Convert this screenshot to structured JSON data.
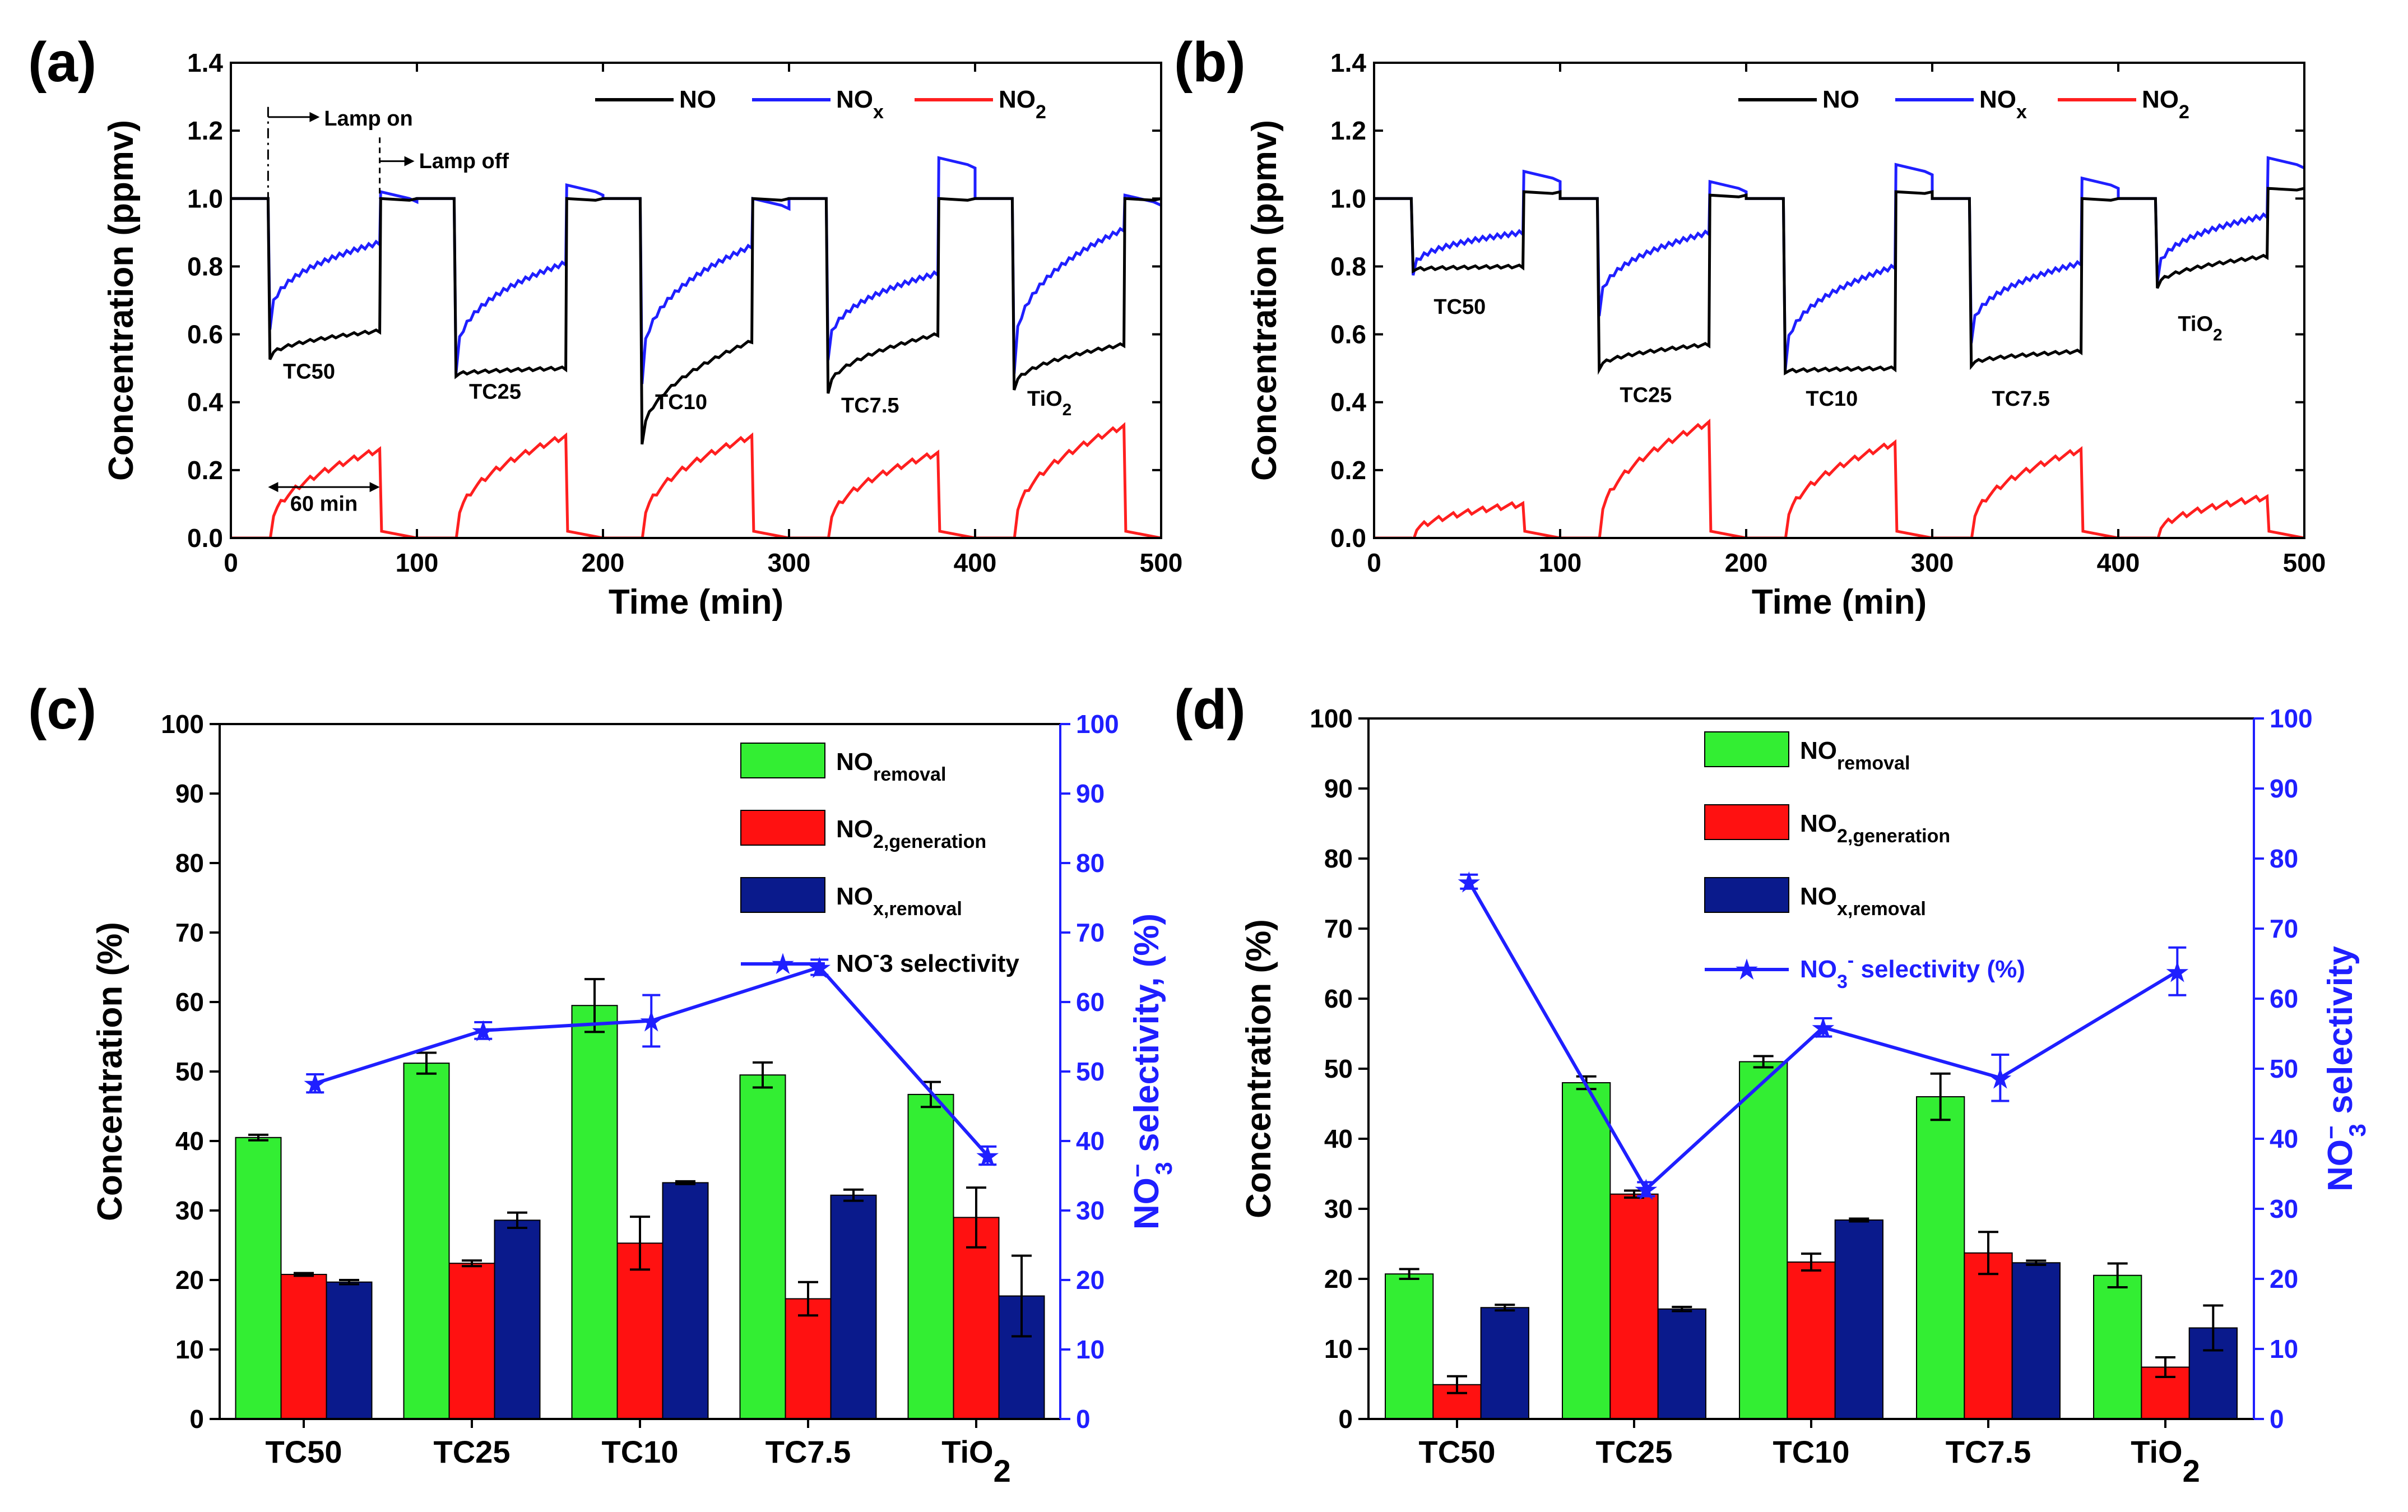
{
  "colors": {
    "no": "#000000",
    "nox": "#1f1fff",
    "no2": "#ff1f1f",
    "removal": "#33ee33",
    "generation": "#ff1111",
    "noxremoval": "#0a1a8c",
    "selectivity": "#1f1fff",
    "axis": "#000000"
  },
  "chart_data": [
    {
      "panel": "(a)",
      "type": "line",
      "xlabel": "Time (min)",
      "ylabel": "Concentration (ppmv)",
      "xlim": [
        0,
        500
      ],
      "ylim": [
        0,
        1.4
      ],
      "xticks": [
        "0",
        "100",
        "200",
        "300",
        "400",
        "500"
      ],
      "yticks": [
        "0.0",
        "0.2",
        "0.4",
        "0.6",
        "0.8",
        "1.0",
        "1.2",
        "1.4"
      ],
      "legend": {
        "no": "NO",
        "nox_base": "NO",
        "nox_sub": "x",
        "no2_base": "NO",
        "no2_sub": "2"
      },
      "annotations": {
        "lamp_on": "Lamp on",
        "lamp_off": "Lamp off",
        "duration": "60 min"
      },
      "samples": [
        {
          "name": "TC50",
          "sub": "",
          "start": 20,
          "no_drop": 0.53,
          "no_end": 0.61,
          "nox_drop": 0.62,
          "nox_end": 0.87,
          "no2_end": 0.26,
          "no_after": 1.0,
          "nox_after": 1.02
        },
        {
          "name": "TC25",
          "sub": "",
          "start": 120,
          "no_drop": 0.48,
          "no_end": 0.5,
          "nox_drop": 0.49,
          "nox_end": 0.81,
          "no2_end": 0.3,
          "no_after": 1.0,
          "nox_after": 1.04
        },
        {
          "name": "TC10",
          "sub": "",
          "start": 220,
          "no_drop": 0.28,
          "no_end": 0.58,
          "nox_drop": 0.46,
          "nox_end": 0.86,
          "no2_end": 0.3,
          "no_after": 1.0,
          "nox_after": 1.0
        },
        {
          "name": "TC7.5",
          "sub": "",
          "start": 320,
          "no_drop": 0.43,
          "no_end": 0.6,
          "nox_drop": 0.53,
          "nox_end": 0.78,
          "no2_end": 0.25,
          "no_after": 1.0,
          "nox_after": 1.12
        },
        {
          "name": "TiO",
          "sub": "2",
          "start": 420,
          "no_drop": 0.44,
          "no_end": 0.57,
          "nox_drop": 0.49,
          "nox_end": 0.91,
          "no2_end": 0.33,
          "no_after": 1.0,
          "nox_after": 1.01
        }
      ]
    },
    {
      "panel": "(b)",
      "type": "line",
      "xlabel": "Time (min)",
      "ylabel": "Concentration (ppmv)",
      "xlim": [
        0,
        500
      ],
      "ylim": [
        0,
        1.4
      ],
      "xticks": [
        "0",
        "100",
        "200",
        "300",
        "400",
        "500"
      ],
      "yticks": [
        "0.0",
        "0.2",
        "0.4",
        "0.6",
        "0.8",
        "1.0",
        "1.2",
        "1.4"
      ],
      "legend": {
        "no": "NO",
        "nox_base": "NO",
        "nox_sub": "x",
        "no2_base": "NO",
        "no2_sub": "2"
      },
      "samples": [
        {
          "name": "TC50",
          "sub": "",
          "start": 20,
          "no_drop": 0.79,
          "no_end": 0.8,
          "nox_drop": 0.78,
          "nox_end": 0.9,
          "no2_end": 0.1,
          "no_after": 1.02,
          "nox_after": 1.08
        },
        {
          "name": "TC25",
          "sub": "",
          "start": 120,
          "no_drop": 0.5,
          "no_end": 0.57,
          "nox_drop": 0.66,
          "nox_end": 0.9,
          "no2_end": 0.34,
          "no_after": 1.01,
          "nox_after": 1.05
        },
        {
          "name": "TC10",
          "sub": "",
          "start": 220,
          "no_drop": 0.49,
          "no_end": 0.5,
          "nox_drop": 0.5,
          "nox_end": 0.8,
          "no2_end": 0.28,
          "no_after": 1.02,
          "nox_after": 1.1
        },
        {
          "name": "TC7.5",
          "sub": "",
          "start": 320,
          "no_drop": 0.51,
          "no_end": 0.55,
          "nox_drop": 0.58,
          "nox_end": 0.81,
          "no2_end": 0.26,
          "no_after": 1.0,
          "nox_after": 1.06
        },
        {
          "name": "TiO",
          "sub": "2",
          "start": 420,
          "no_drop": 0.74,
          "no_end": 0.83,
          "nox_drop": 0.76,
          "nox_end": 0.95,
          "no2_end": 0.12,
          "no_after": 1.03,
          "nox_after": 1.12
        }
      ]
    },
    {
      "panel": "(c)",
      "type": "bar",
      "ylabel": "Concentration (%)",
      "y2label_base": "NO",
      "y2label_sup": "−",
      "y2label_sub": "3",
      "y2label_rest": " selectivity, (%)",
      "ylim": [
        0,
        100
      ],
      "y2lim": [
        0,
        100
      ],
      "yticks": [
        "0",
        "10",
        "20",
        "30",
        "40",
        "50",
        "60",
        "70",
        "80",
        "90",
        "100"
      ],
      "categories": [
        {
          "name": "TC50",
          "sub": ""
        },
        {
          "name": "TC25",
          "sub": ""
        },
        {
          "name": "TC10",
          "sub": ""
        },
        {
          "name": "TC7.5",
          "sub": ""
        },
        {
          "name": "TiO",
          "sub": "2"
        }
      ],
      "series": [
        {
          "name": "NO_removal",
          "values": [
            40.5,
            51.2,
            59.5,
            49.5,
            46.7
          ],
          "errors": [
            0.4,
            1.5,
            3.8,
            1.8,
            1.8
          ]
        },
        {
          "name": "NO2_generation",
          "values": [
            20.8,
            22.4,
            25.3,
            17.3,
            29.0
          ],
          "errors": [
            0.2,
            0.4,
            3.8,
            2.4,
            4.3
          ]
        },
        {
          "name": "NOx_removal",
          "values": [
            19.7,
            28.6,
            34.0,
            32.2,
            17.7
          ],
          "errors": [
            0.3,
            1.1,
            0.2,
            0.8,
            5.8
          ]
        }
      ],
      "selectivity": {
        "values": [
          48.3,
          55.9,
          57.3,
          65.0,
          37.9
        ],
        "errors": [
          1.3,
          1.2,
          3.7,
          1.1,
          1.3
        ]
      },
      "legend": [
        {
          "base": "NO",
          "sub": "removal"
        },
        {
          "base": "NO",
          "sub": "2,generation"
        },
        {
          "base": "NO",
          "sub": "x,removal"
        },
        {
          "base": "NO",
          "sup": "-",
          "rest": "3 selectivity"
        }
      ]
    },
    {
      "panel": "(d)",
      "type": "bar",
      "ylabel": "Concentration (%)",
      "y2label_base": "NO",
      "y2label_sup": "−",
      "y2label_sub": "3",
      "y2label_rest": " selectivity",
      "ylim": [
        0,
        100
      ],
      "y2lim": [
        0,
        100
      ],
      "yticks": [
        "0",
        "10",
        "20",
        "30",
        "40",
        "50",
        "60",
        "70",
        "80",
        "90",
        "100"
      ],
      "categories": [
        {
          "name": "TC50",
          "sub": ""
        },
        {
          "name": "TC25",
          "sub": ""
        },
        {
          "name": "TC10",
          "sub": ""
        },
        {
          "name": "TC7.5",
          "sub": ""
        },
        {
          "name": "TiO",
          "sub": "2"
        }
      ],
      "series": [
        {
          "name": "NO_removal",
          "values": [
            20.7,
            48.0,
            51.0,
            46.0,
            20.5
          ],
          "errors": [
            0.7,
            0.9,
            0.8,
            3.3,
            1.7
          ]
        },
        {
          "name": "NO2_generation",
          "values": [
            4.9,
            32.1,
            22.4,
            23.7,
            7.4
          ],
          "errors": [
            1.2,
            0.5,
            1.2,
            3.0,
            1.4
          ]
        },
        {
          "name": "NOx_removal",
          "values": [
            15.9,
            15.7,
            28.4,
            22.3,
            13.0
          ],
          "errors": [
            0.4,
            0.3,
            0.2,
            0.3,
            3.2
          ]
        }
      ],
      "selectivity": {
        "values": [
          76.7,
          32.8,
          55.9,
          48.7,
          63.9
        ],
        "errors": [
          1.0,
          1.0,
          1.3,
          3.3,
          3.4
        ]
      },
      "legend": [
        {
          "base": "NO",
          "sub": "removal"
        },
        {
          "base": "NO",
          "sub": "2,generation"
        },
        {
          "base": "NO",
          "sub": "x,removal"
        },
        {
          "base": "NO",
          "sub": "3",
          "sup": "-",
          "rest": " selectivity (%)"
        }
      ]
    }
  ]
}
